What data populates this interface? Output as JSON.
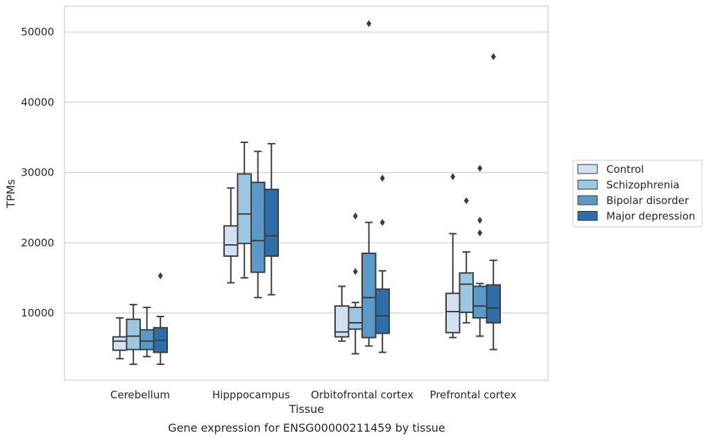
{
  "chart_data": {
    "type": "box",
    "title": "",
    "caption": "Gene expression for ENSG00000211459 by tissue",
    "xlabel": "Tissue",
    "ylabel": "TPMs",
    "ylim": [
      0,
      53500
    ],
    "yticks": [
      10000,
      20000,
      30000,
      40000,
      50000
    ],
    "grid": true,
    "legend_position": "right, outside plot",
    "categories": [
      "Cerebellum",
      "Hipppocampus",
      "Orbitofrontal cortex",
      "Prefrontal cortex"
    ],
    "series": [
      {
        "name": "Control",
        "color": "#d0e2f2",
        "boxes": [
          {
            "whislo": 3500,
            "q1": 4700,
            "med": 6000,
            "q3": 6600,
            "whishi": 9300,
            "fliers": []
          },
          {
            "whislo": 14300,
            "q1": 18100,
            "med": 19700,
            "q3": 22400,
            "whishi": 27800,
            "fliers": []
          },
          {
            "whislo": 6000,
            "q1": 6600,
            "med": 7300,
            "q3": 11000,
            "whishi": 13800,
            "fliers": []
          },
          {
            "whislo": 6500,
            "q1": 7200,
            "med": 10200,
            "q3": 12800,
            "whishi": 21300,
            "fliers": [
              29400
            ]
          }
        ]
      },
      {
        "name": "Schizophrenia",
        "color": "#9ac8e0",
        "boxes": [
          {
            "whislo": 2700,
            "q1": 4800,
            "med": 6700,
            "q3": 9100,
            "whishi": 11200,
            "fliers": []
          },
          {
            "whislo": 15000,
            "q1": 19900,
            "med": 24100,
            "q3": 29800,
            "whishi": 34300,
            "fliers": []
          },
          {
            "whislo": 4200,
            "q1": 7700,
            "med": 8600,
            "q3": 10800,
            "whishi": 11500,
            "fliers": [
              15900,
              23800
            ]
          },
          {
            "whislo": 8600,
            "q1": 10100,
            "med": 14100,
            "q3": 15700,
            "whishi": 18700,
            "fliers": [
              26000
            ]
          }
        ]
      },
      {
        "name": "Bipolar disorder",
        "color": "#5a9ac8",
        "boxes": [
          {
            "whislo": 3800,
            "q1": 4800,
            "med": 6000,
            "q3": 7600,
            "whishi": 10800,
            "fliers": []
          },
          {
            "whislo": 12200,
            "q1": 15800,
            "med": 20300,
            "q3": 28600,
            "whishi": 33000,
            "fliers": []
          },
          {
            "whislo": 5300,
            "q1": 6500,
            "med": 12200,
            "q3": 18500,
            "whishi": 22900,
            "fliers": [
              51200
            ]
          },
          {
            "whislo": 6700,
            "q1": 9300,
            "med": 11000,
            "q3": 13800,
            "whishi": 14200,
            "fliers": [
              21400,
              23200,
              30600
            ]
          }
        ]
      },
      {
        "name": "Major depression",
        "color": "#2b6ea9",
        "boxes": [
          {
            "whislo": 2700,
            "q1": 4400,
            "med": 6100,
            "q3": 7900,
            "whishi": 9500,
            "fliers": [
              15300
            ]
          },
          {
            "whislo": 12600,
            "q1": 18100,
            "med": 21000,
            "q3": 27600,
            "whishi": 34100,
            "fliers": []
          },
          {
            "whislo": 4400,
            "q1": 7100,
            "med": 9600,
            "q3": 13400,
            "whishi": 16000,
            "fliers": [
              22900,
              29200
            ]
          },
          {
            "whislo": 4800,
            "q1": 8600,
            "med": 10700,
            "q3": 14000,
            "whishi": 17500,
            "fliers": [
              46500
            ]
          }
        ]
      }
    ]
  }
}
